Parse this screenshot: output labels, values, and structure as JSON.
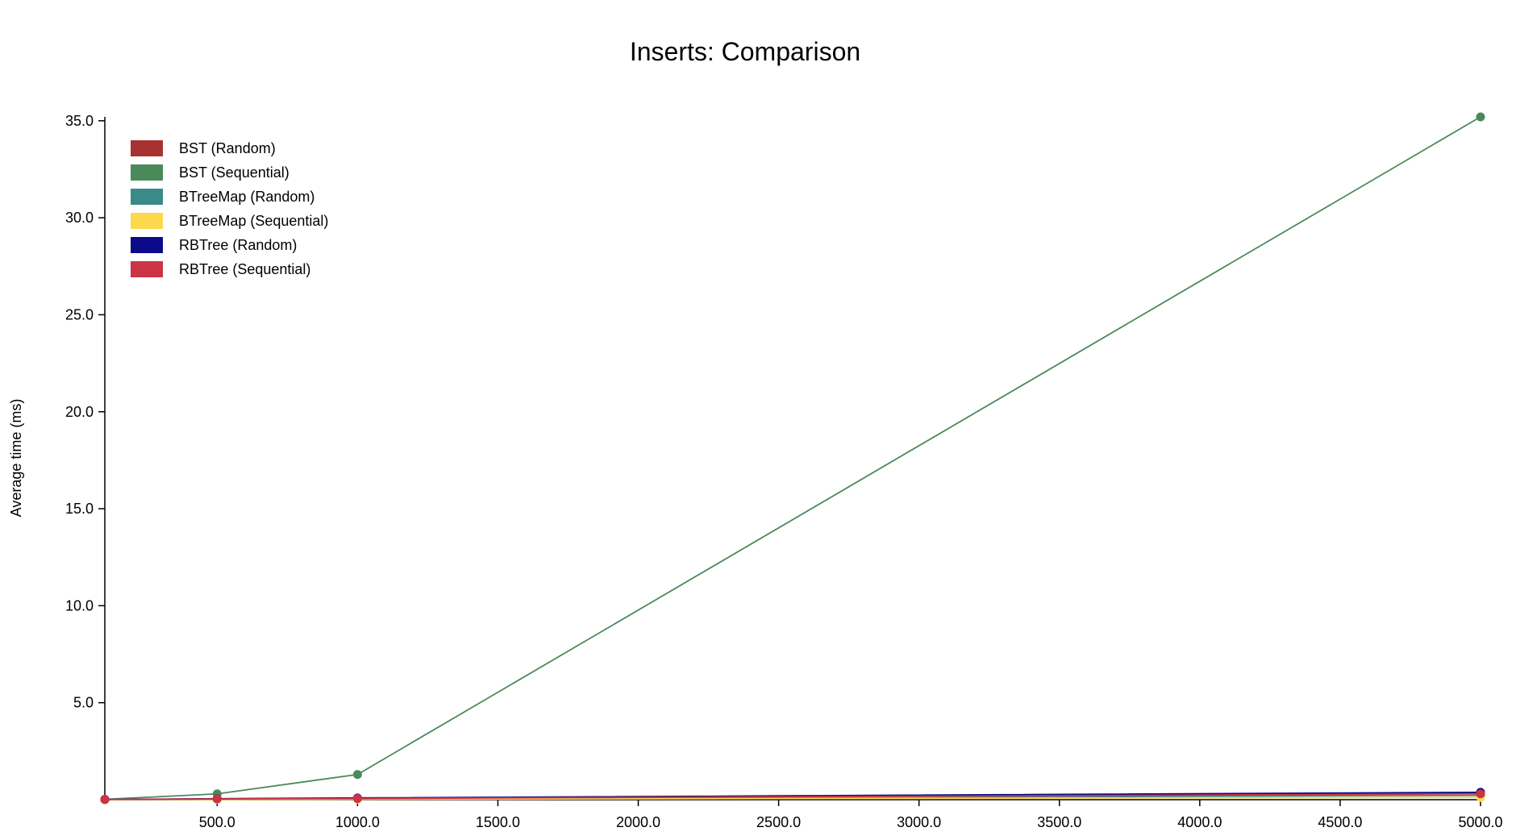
{
  "chart_data": {
    "type": "line",
    "title": "Inserts: Comparison",
    "xlabel": "",
    "ylabel": "Average time (ms)",
    "xlim": [
      100,
      5000
    ],
    "ylim": [
      0,
      35.2
    ],
    "x_ticks": [
      500,
      1000,
      1500,
      2000,
      2500,
      3000,
      3500,
      4000,
      4500,
      5000
    ],
    "x_tick_labels": [
      "500.0",
      "1000.0",
      "1500.0",
      "2000.0",
      "2500.0",
      "3000.0",
      "3500.0",
      "4000.0",
      "4500.0",
      "5000.0"
    ],
    "y_ticks": [
      5,
      10,
      15,
      20,
      25,
      30,
      35
    ],
    "y_tick_labels": [
      "5.0",
      "10.0",
      "15.0",
      "20.0",
      "25.0",
      "30.0",
      "35.0"
    ],
    "x": [
      100,
      500,
      1000,
      5000
    ],
    "legend_position": "top-left",
    "grid": false,
    "series": [
      {
        "name": "BST (Random)",
        "color": "#a83232",
        "values": [
          0.01,
          0.04,
          0.07,
          0.34
        ]
      },
      {
        "name": "BST (Sequential)",
        "color": "#4a8a5a",
        "values": [
          0.02,
          0.3,
          1.3,
          35.2
        ]
      },
      {
        "name": "BTreeMap (Random)",
        "color": "#3a8a8a",
        "values": [
          0.01,
          0.02,
          0.04,
          0.22
        ]
      },
      {
        "name": "BTreeMap (Sequential)",
        "color": "#fdd84d",
        "values": [
          0.0,
          0.01,
          0.02,
          0.12
        ]
      },
      {
        "name": "RBTree (Random)",
        "color": "#0a0a8a",
        "values": [
          0.01,
          0.05,
          0.09,
          0.38
        ]
      },
      {
        "name": "RBTree (Sequential)",
        "color": "#cc3344",
        "values": [
          0.01,
          0.04,
          0.06,
          0.3
        ]
      }
    ]
  }
}
